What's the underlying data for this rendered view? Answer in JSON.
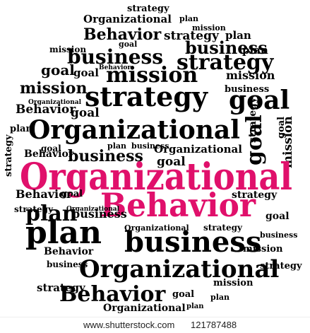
{
  "image": {
    "headline": {
      "line1": "Organizational",
      "line2": "Behavior",
      "color": "#e0106b"
    },
    "word_color": "#000000",
    "words": {
      "strategy": "strategy",
      "organizational": "Organizational",
      "plan": "plan",
      "behavior": "Behavior",
      "mission": "mission",
      "business": "business",
      "goal": "goal"
    }
  },
  "watermark": {
    "site": "www.shutterstock.com",
    "id": "121787488"
  }
}
